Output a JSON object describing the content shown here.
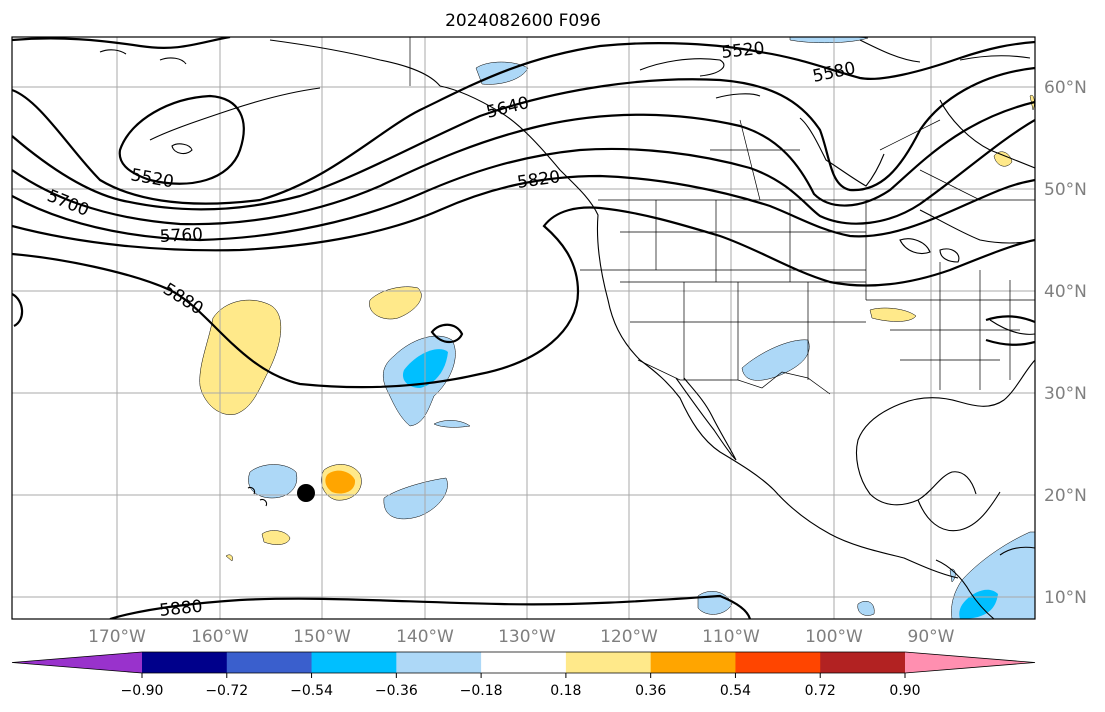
{
  "title": "2024082600 F096",
  "longitude_labels": [
    "170°W",
    "160°W",
    "150°W",
    "140°W",
    "130°W",
    "120°W",
    "110°W",
    "100°W",
    "90°W"
  ],
  "latitude_labels": [
    "60°N",
    "50°N",
    "40°N",
    "30°N",
    "20°N",
    "10°N"
  ],
  "contour_labels": [
    "5520",
    "5580",
    "5640",
    "5520",
    "5700",
    "5760",
    "5820",
    "5880",
    "5880"
  ],
  "colorbar": {
    "ticks": [
      "−0.90",
      "−0.72",
      "−0.54",
      "−0.36",
      "−0.18",
      "0.18",
      "0.36",
      "0.54",
      "0.72",
      "0.90"
    ],
    "colors": [
      "#9932cc",
      "#00008b",
      "#3a5fcd",
      "#00bfff",
      "#add8f7",
      "#ffffff",
      "#ffe98a",
      "#ffa500",
      "#ff4500",
      "#b22222",
      "#ff8fb0"
    ]
  },
  "colors": {
    "anomaly_pos_light": "#ffe98a",
    "anomaly_pos_mid": "#ffa500",
    "anomaly_neg_light": "#add8f7",
    "anomaly_neg_mid": "#00bfff"
  }
}
